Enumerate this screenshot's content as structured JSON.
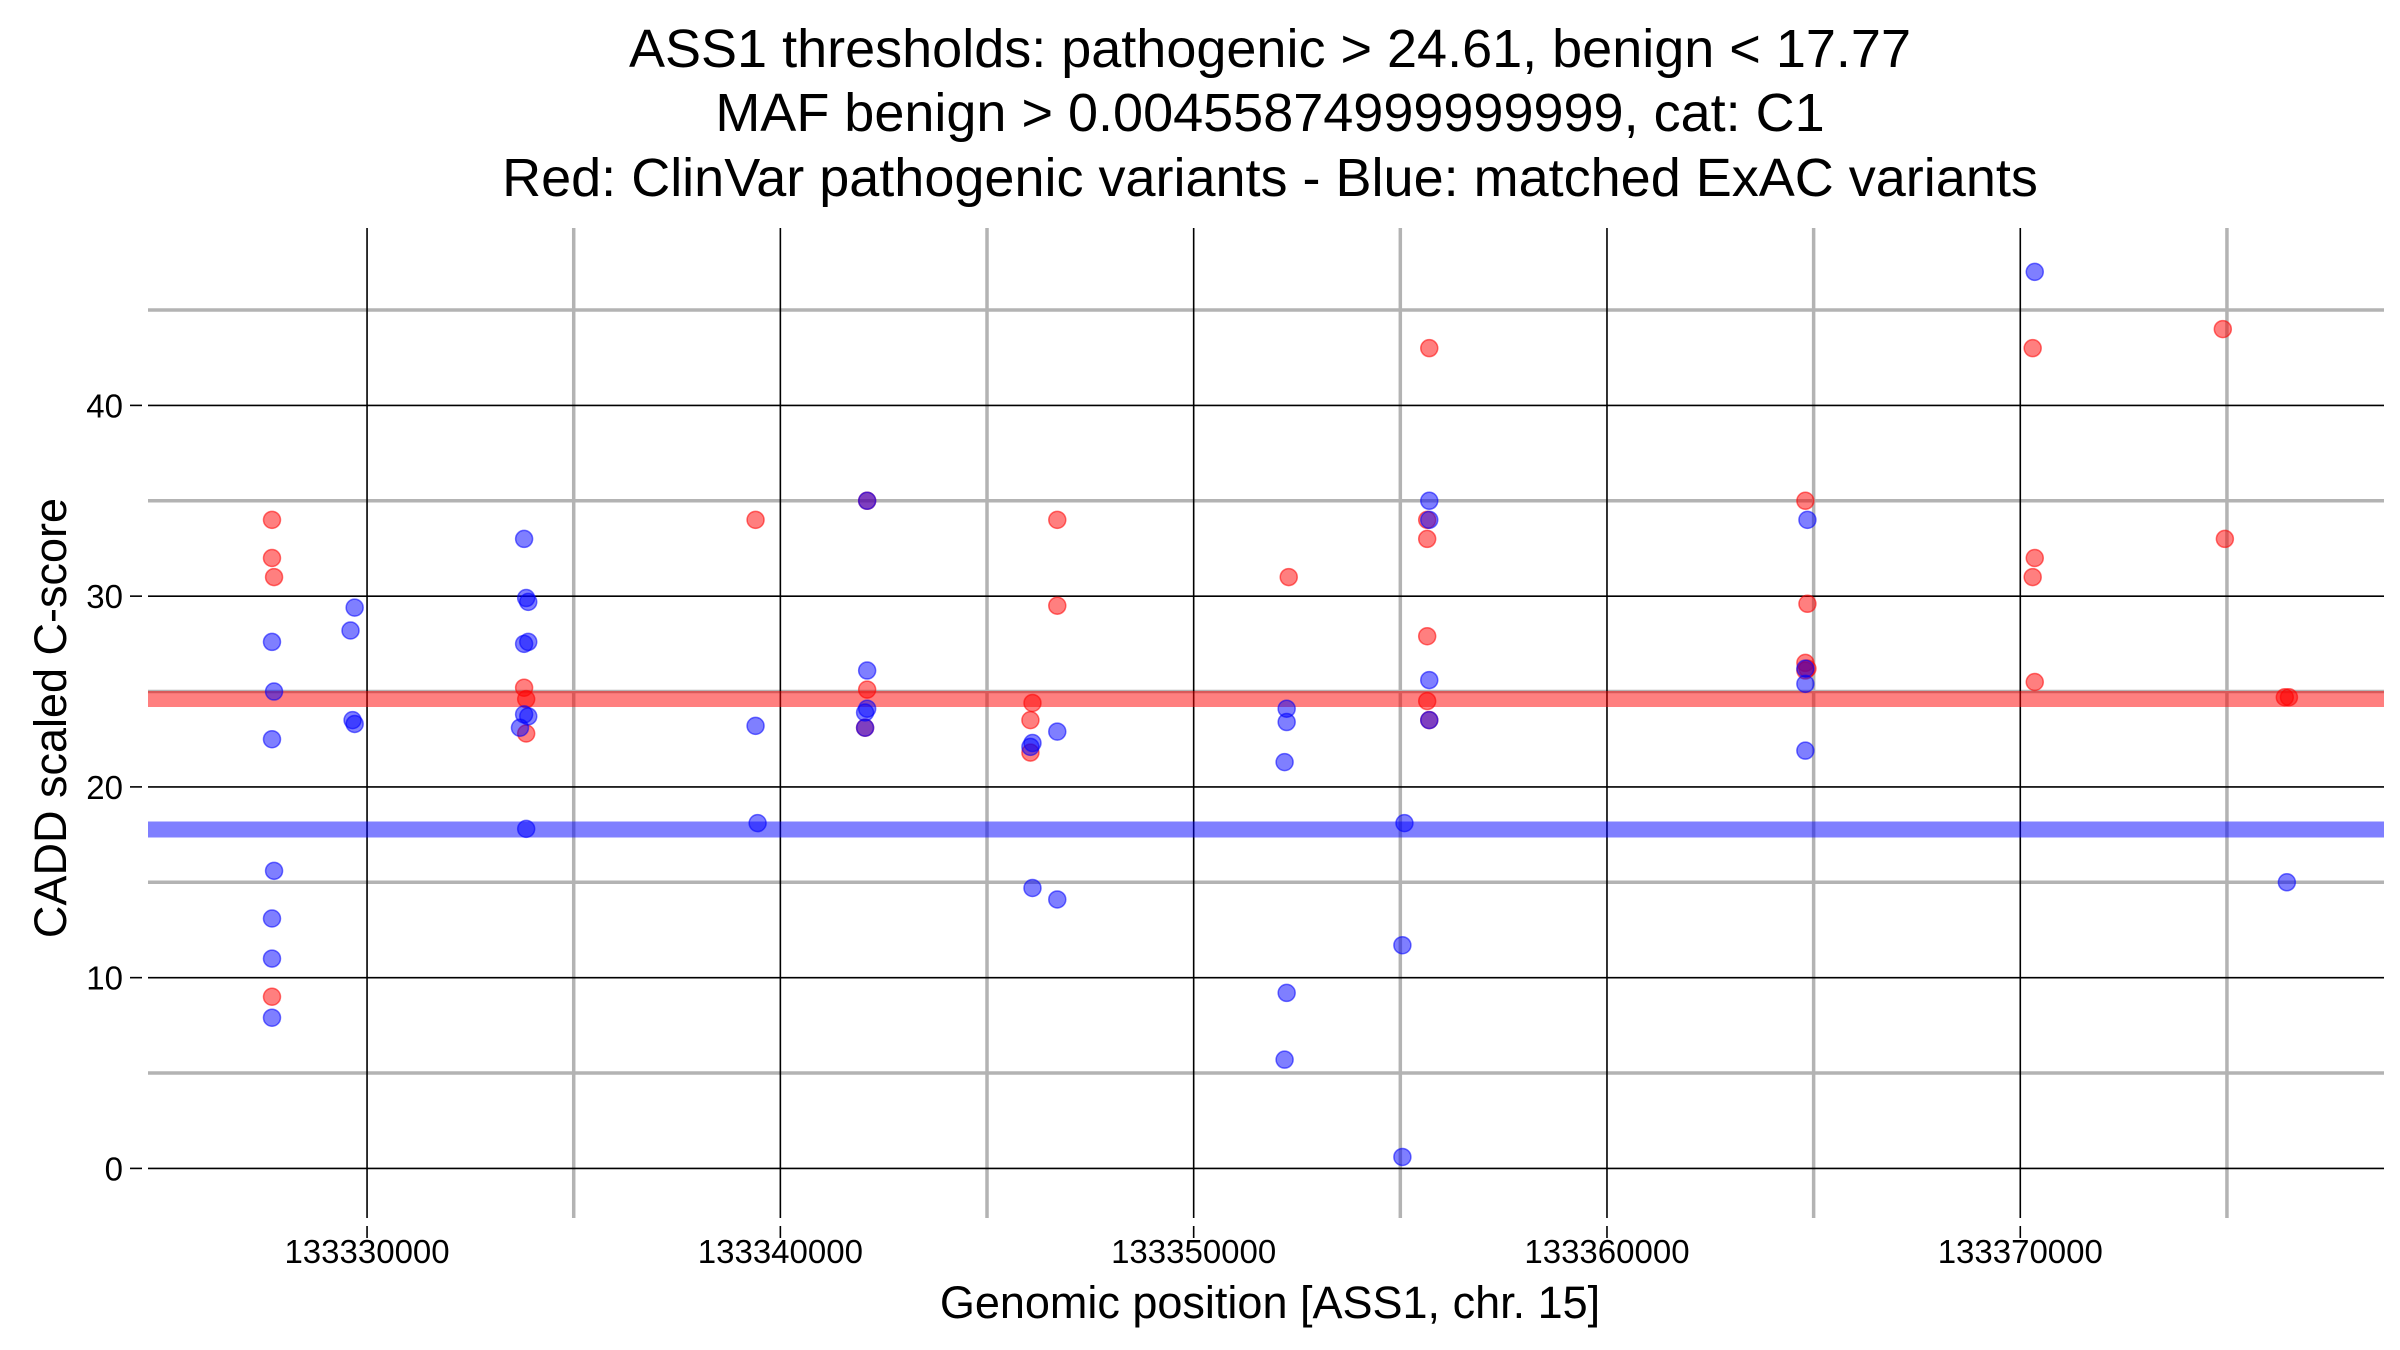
{
  "chart_data": {
    "type": "scatter",
    "title_lines": [
      "ASS1 thresholds: pathogenic > 24.61, benign < 17.77",
      "MAF benign > 0.00455874999999999, cat: C1",
      "Red: ClinVar pathogenic variants - Blue: matched ExAC variants"
    ],
    "xlabel": "Genomic position [ASS1, chr. 15]",
    "ylabel": "CADD scaled C-score",
    "xlim": [
      133324700,
      133378800
    ],
    "ylim": [
      -2.6,
      49.3
    ],
    "x_major_ticks": [
      133330000,
      133340000,
      133350000,
      133360000,
      133370000
    ],
    "x_tick_labels": [
      "133330000",
      "133340000",
      "133350000",
      "133360000",
      "133370000"
    ],
    "x_minor_ticks": [
      133335000,
      133345000,
      133355000,
      133365000,
      133375000
    ],
    "y_major_ticks": [
      0,
      10,
      20,
      30,
      40
    ],
    "y_tick_labels": [
      "0",
      "10",
      "20",
      "30",
      "40"
    ],
    "y_minor_ticks": [
      5,
      15,
      25,
      35,
      45
    ],
    "thresholds": [
      {
        "name": "pathogenic",
        "value": 24.61,
        "color": "#ff0000"
      },
      {
        "name": "benign",
        "value": 17.77,
        "color": "#0000ff"
      }
    ],
    "series": [
      {
        "name": "ClinVar pathogenic variants",
        "color": "#ff0000",
        "points": [
          [
            133327700,
            34.0
          ],
          [
            133327700,
            32.0
          ],
          [
            133327750,
            31.0
          ],
          [
            133327700,
            9.0
          ],
          [
            133333800,
            25.2
          ],
          [
            133333850,
            24.6
          ],
          [
            133333850,
            22.8
          ],
          [
            133339400,
            34.0
          ],
          [
            133342100,
            35.0
          ],
          [
            133342100,
            25.1
          ],
          [
            133342050,
            23.1
          ],
          [
            133346100,
            24.4
          ],
          [
            133346050,
            23.5
          ],
          [
            133346050,
            21.8
          ],
          [
            133346700,
            34.0
          ],
          [
            133346700,
            29.5
          ],
          [
            133352300,
            31.0
          ],
          [
            133355700,
            43.0
          ],
          [
            133355650,
            34.0
          ],
          [
            133355650,
            33.0
          ],
          [
            133355650,
            27.9
          ],
          [
            133355650,
            24.5
          ],
          [
            133355700,
            23.5
          ],
          [
            133364800,
            35.0
          ],
          [
            133364850,
            29.6
          ],
          [
            133364800,
            26.5
          ],
          [
            133364850,
            26.2
          ],
          [
            133364800,
            26.1
          ],
          [
            133370300,
            43.0
          ],
          [
            133370350,
            32.0
          ],
          [
            133370300,
            31.0
          ],
          [
            133370350,
            25.5
          ],
          [
            133374900,
            44.0
          ],
          [
            133374950,
            33.0
          ],
          [
            133376400,
            24.7
          ],
          [
            133376500,
            24.7
          ]
        ]
      },
      {
        "name": "matched ExAC variants",
        "color": "#0000ff",
        "points": [
          [
            133327700,
            27.6
          ],
          [
            133327750,
            25.0
          ],
          [
            133327700,
            22.5
          ],
          [
            133327750,
            15.6
          ],
          [
            133327700,
            13.1
          ],
          [
            133327700,
            11.0
          ],
          [
            133327700,
            7.9
          ],
          [
            133329700,
            29.4
          ],
          [
            133329600,
            28.2
          ],
          [
            133329650,
            23.5
          ],
          [
            133329700,
            23.3
          ],
          [
            133333800,
            33.0
          ],
          [
            133333850,
            29.9
          ],
          [
            133333900,
            29.7
          ],
          [
            133333800,
            27.5
          ],
          [
            133333900,
            27.6
          ],
          [
            133333800,
            23.8
          ],
          [
            133333900,
            23.7
          ],
          [
            133333700,
            23.1
          ],
          [
            133333850,
            17.8
          ],
          [
            133339400,
            23.2
          ],
          [
            133339450,
            18.1
          ],
          [
            133342100,
            35.0
          ],
          [
            133342100,
            26.1
          ],
          [
            133342100,
            24.1
          ],
          [
            133342050,
            23.9
          ],
          [
            133342050,
            23.1
          ],
          [
            133346100,
            22.3
          ],
          [
            133346050,
            22.1
          ],
          [
            133346100,
            14.7
          ],
          [
            133346700,
            22.9
          ],
          [
            133346700,
            14.1
          ],
          [
            133352250,
            24.1
          ],
          [
            133352250,
            23.4
          ],
          [
            133352200,
            21.3
          ],
          [
            133352250,
            9.2
          ],
          [
            133352200,
            5.7
          ],
          [
            133355100,
            18.1
          ],
          [
            133355050,
            11.7
          ],
          [
            133355050,
            0.6
          ],
          [
            133355700,
            35.0
          ],
          [
            133355700,
            34.0
          ],
          [
            133355700,
            25.6
          ],
          [
            133355700,
            23.5
          ],
          [
            133364850,
            34.0
          ],
          [
            133364800,
            26.2
          ],
          [
            133364800,
            25.4
          ],
          [
            133364800,
            21.9
          ],
          [
            133370350,
            47.0
          ],
          [
            133376450,
            15.0
          ]
        ]
      }
    ]
  }
}
